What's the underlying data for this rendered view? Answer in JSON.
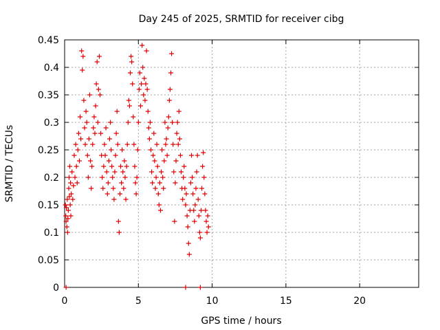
{
  "chart_data": {
    "type": "scatter",
    "title": "Day 245 of 2025, SRMTID for receiver cibg",
    "xlabel": "GPS time / hours",
    "ylabel": "SRMTID / TECUs",
    "xlim": [
      0,
      24
    ],
    "ylim": [
      0,
      0.45
    ],
    "xticks": [
      0,
      5,
      10,
      15,
      20
    ],
    "yticks": [
      0,
      0.05,
      0.1,
      0.15,
      0.2,
      0.25,
      0.3,
      0.35,
      0.4,
      0.45
    ],
    "xtick_labels": [
      "0",
      "5",
      "10",
      "15",
      "20"
    ],
    "ytick_labels": [
      "0",
      "0.05",
      "0.1",
      "0.15",
      "0.2",
      "0.25",
      "0.3",
      "0.35",
      "0.4",
      "0.45"
    ],
    "grid": true,
    "marker": "+",
    "color": "#dd0000",
    "series": [
      {
        "name": "SRMTID",
        "points": [
          [
            0.05,
            0.15
          ],
          [
            0.08,
            0.13
          ],
          [
            0.1,
            0.12
          ],
          [
            0.12,
            0.145
          ],
          [
            0.15,
            0.11
          ],
          [
            0.18,
            0.16
          ],
          [
            0.2,
            0.1
          ],
          [
            0.22,
            0.125
          ],
          [
            0.25,
            0.14
          ],
          [
            0.28,
            0.18
          ],
          [
            0.3,
            0.2
          ],
          [
            0.32,
            0.165
          ],
          [
            0.35,
            0.22
          ],
          [
            0.38,
            0.15
          ],
          [
            0.4,
            0.19
          ],
          [
            0.42,
            0.13
          ],
          [
            0.45,
            0.17
          ],
          [
            0.5,
            0.21
          ],
          [
            0.55,
            0.16
          ],
          [
            0.6,
            0.185
          ],
          [
            0.65,
            0.24
          ],
          [
            0.7,
            0.2
          ],
          [
            0.75,
            0.26
          ],
          [
            0.8,
            0.22
          ],
          [
            0.85,
            0.19
          ],
          [
            0.9,
            0.25
          ],
          [
            0.95,
            0.28
          ],
          [
            1.0,
            0.23
          ],
          [
            1.05,
            0.31
          ],
          [
            1.1,
            0.27
          ],
          [
            1.15,
            0.43
          ],
          [
            1.2,
            0.395
          ],
          [
            1.25,
            0.42
          ],
          [
            1.3,
            0.34
          ],
          [
            1.35,
            0.29
          ],
          [
            1.4,
            0.26
          ],
          [
            1.45,
            0.32
          ],
          [
            1.5,
            0.3
          ],
          [
            1.55,
            0.24
          ],
          [
            1.6,
            0.2
          ],
          [
            1.65,
            0.27
          ],
          [
            1.7,
            0.35
          ],
          [
            1.75,
            0.23
          ],
          [
            1.8,
            0.18
          ],
          [
            1.85,
            0.22
          ],
          [
            1.9,
            0.26
          ],
          [
            1.95,
            0.29
          ],
          [
            2.0,
            0.31
          ],
          [
            2.05,
            0.28
          ],
          [
            2.1,
            0.33
          ],
          [
            2.15,
            0.37
          ],
          [
            2.2,
            0.41
          ],
          [
            2.25,
            0.3
          ],
          [
            2.3,
            0.36
          ],
          [
            2.35,
            0.42
          ],
          [
            2.4,
            0.35
          ],
          [
            2.45,
            0.28
          ],
          [
            2.5,
            0.24
          ],
          [
            2.55,
            0.2
          ],
          [
            2.6,
            0.18
          ],
          [
            2.65,
            0.22
          ],
          [
            2.7,
            0.26
          ],
          [
            2.75,
            0.24
          ],
          [
            2.8,
            0.29
          ],
          [
            2.85,
            0.21
          ],
          [
            2.9,
            0.17
          ],
          [
            2.95,
            0.19
          ],
          [
            3.0,
            0.23
          ],
          [
            3.05,
            0.27
          ],
          [
            3.1,
            0.3
          ],
          [
            3.15,
            0.25
          ],
          [
            3.2,
            0.22
          ],
          [
            3.25,
            0.2
          ],
          [
            3.3,
            0.18
          ],
          [
            3.35,
            0.16
          ],
          [
            3.4,
            0.21
          ],
          [
            3.45,
            0.24
          ],
          [
            3.5,
            0.28
          ],
          [
            3.55,
            0.32
          ],
          [
            3.6,
            0.26
          ],
          [
            3.65,
            0.12
          ],
          [
            3.7,
            0.1
          ],
          [
            3.75,
            0.17
          ],
          [
            3.8,
            0.22
          ],
          [
            3.85,
            0.19
          ],
          [
            3.9,
            0.25
          ],
          [
            3.95,
            0.21
          ],
          [
            4.0,
            0.18
          ],
          [
            4.05,
            0.23
          ],
          [
            4.1,
            0.2
          ],
          [
            4.15,
            0.16
          ],
          [
            4.2,
            0.22
          ],
          [
            4.25,
            0.26
          ],
          [
            4.3,
            0.3
          ],
          [
            4.35,
            0.34
          ],
          [
            4.4,
            0.33
          ],
          [
            4.45,
            0.39
          ],
          [
            4.5,
            0.42
          ],
          [
            4.55,
            0.41
          ],
          [
            4.6,
            0.37
          ],
          [
            4.65,
            0.31
          ],
          [
            4.7,
            0.26
          ],
          [
            4.75,
            0.22
          ],
          [
            4.8,
            0.19
          ],
          [
            4.85,
            0.17
          ],
          [
            4.9,
            0.2
          ],
          [
            4.95,
            0.25
          ],
          [
            5.0,
            0.3
          ],
          [
            5.05,
            0.36
          ],
          [
            5.1,
            0.39
          ],
          [
            5.15,
            0.33
          ],
          [
            5.2,
            0.37
          ],
          [
            5.25,
            0.44
          ],
          [
            5.3,
            0.4
          ],
          [
            5.35,
            0.35
          ],
          [
            5.4,
            0.38
          ],
          [
            5.45,
            0.34
          ],
          [
            5.5,
            0.37
          ],
          [
            5.55,
            0.43
          ],
          [
            5.6,
            0.36
          ],
          [
            5.65,
            0.32
          ],
          [
            5.7,
            0.29
          ],
          [
            5.75,
            0.27
          ],
          [
            5.8,
            0.3
          ],
          [
            5.85,
            0.25
          ],
          [
            5.9,
            0.21
          ],
          [
            5.95,
            0.19
          ],
          [
            6.0,
            0.24
          ],
          [
            6.05,
            0.28
          ],
          [
            6.1,
            0.23
          ],
          [
            6.15,
            0.18
          ],
          [
            6.2,
            0.2
          ],
          [
            6.25,
            0.26
          ],
          [
            6.3,
            0.22
          ],
          [
            6.35,
            0.17
          ],
          [
            6.4,
            0.15
          ],
          [
            6.45,
            0.19
          ],
          [
            6.5,
            0.14
          ],
          [
            6.55,
            0.21
          ],
          [
            6.6,
            0.25
          ],
          [
            6.65,
            0.2
          ],
          [
            6.7,
            0.18
          ],
          [
            6.75,
            0.23
          ],
          [
            6.8,
            0.3
          ],
          [
            6.85,
            0.26
          ],
          [
            6.9,
            0.27
          ],
          [
            6.95,
            0.24
          ],
          [
            7.0,
            0.29
          ],
          [
            7.05,
            0.31
          ],
          [
            7.1,
            0.34
          ],
          [
            7.15,
            0.36
          ],
          [
            7.2,
            0.39
          ],
          [
            7.25,
            0.425
          ],
          [
            7.3,
            0.3
          ],
          [
            7.35,
            0.26
          ],
          [
            7.4,
            0.21
          ],
          [
            7.45,
            0.12
          ],
          [
            7.5,
            0.19
          ],
          [
            7.55,
            0.23
          ],
          [
            7.6,
            0.28
          ],
          [
            7.65,
            0.3
          ],
          [
            7.7,
            0.26
          ],
          [
            7.75,
            0.32
          ],
          [
            7.8,
            0.27
          ],
          [
            7.85,
            0.24
          ],
          [
            7.9,
            0.21
          ],
          [
            7.95,
            0.18
          ],
          [
            8.0,
            0.16
          ],
          [
            8.05,
            0.2
          ],
          [
            8.1,
            0.22
          ],
          [
            8.15,
            0.18
          ],
          [
            8.2,
            0.15
          ],
          [
            8.25,
            0.17
          ],
          [
            8.3,
            0.13
          ],
          [
            8.35,
            0.11
          ],
          [
            8.4,
            0.08
          ],
          [
            8.45,
            0.06
          ],
          [
            8.5,
            0.14
          ],
          [
            8.55,
            0.19
          ],
          [
            8.6,
            0.24
          ],
          [
            8.65,
            0.2
          ],
          [
            8.7,
            0.17
          ],
          [
            8.75,
            0.14
          ],
          [
            8.8,
            0.12
          ],
          [
            8.85,
            0.15
          ],
          [
            8.9,
            0.18
          ],
          [
            8.95,
            0.21
          ],
          [
            9.0,
            0.24
          ],
          [
            9.05,
            0.16
          ],
          [
            9.1,
            0.13
          ],
          [
            9.15,
            0.1
          ],
          [
            9.2,
            0.09
          ],
          [
            9.25,
            0.14
          ],
          [
            9.3,
            0.18
          ],
          [
            9.35,
            0.22
          ],
          [
            9.4,
            0.245
          ],
          [
            9.45,
            0.2
          ],
          [
            9.5,
            0.17
          ],
          [
            9.55,
            0.14
          ],
          [
            9.6,
            0.12
          ],
          [
            9.65,
            0.1
          ],
          [
            9.7,
            0.13
          ],
          [
            9.75,
            0.11
          ],
          [
            0.1,
            0.0
          ],
          [
            8.2,
            0.0
          ],
          [
            9.2,
            0.0
          ]
        ]
      }
    ]
  }
}
